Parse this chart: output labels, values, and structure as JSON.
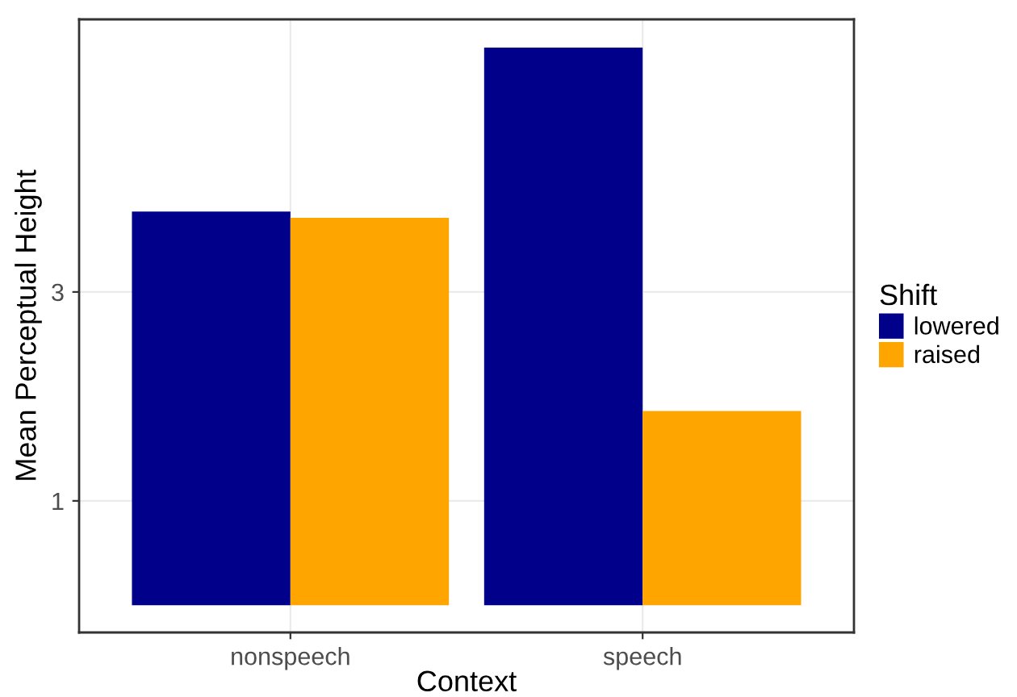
{
  "chart_data": {
    "type": "bar",
    "xlabel": "Context",
    "ylabel": "Mean Perceptual Height",
    "legend_title": "Shift",
    "categories": [
      "nonspeech",
      "speech"
    ],
    "series": [
      {
        "name": "lowered",
        "color": "#00008b",
        "values": [
          3.77,
          5.34
        ]
      },
      {
        "name": "raised",
        "color": "#ffa500",
        "values": [
          3.71,
          1.86
        ]
      }
    ],
    "ylim": [
      -0.26,
      5.61
    ],
    "yticks": [
      1,
      3
    ],
    "grid": true,
    "legend": "right"
  }
}
